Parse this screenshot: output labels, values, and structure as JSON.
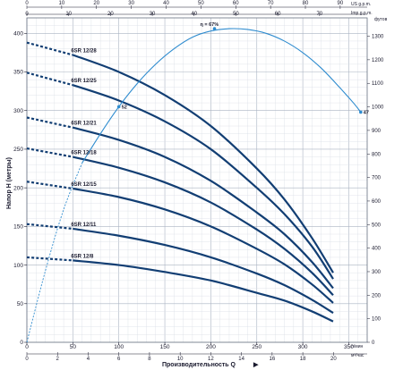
{
  "chart_data": {
    "type": "line",
    "xlabel": "Производительность Q",
    "x_unit": "л/мин",
    "x_unit_m3h": "м³/час",
    "ylabel": "Напор H (метры)",
    "y2_unit": "футов",
    "top_unit_us": "US g.p.m.",
    "top_unit_imp": "Imp g.p.m.",
    "xlim": [
      0,
      370
    ],
    "ylim": [
      0,
      420
    ],
    "x_ticks": [
      0,
      50,
      100,
      150,
      200,
      250,
      300,
      350
    ],
    "y_ticks": [
      0,
      50,
      100,
      150,
      200,
      250,
      300,
      350,
      400
    ],
    "m3h_ticks": [
      0,
      2,
      4,
      6,
      8,
      10,
      12,
      14,
      16,
      18,
      20
    ],
    "us_gpm_ticks": [
      0,
      10,
      20,
      30,
      40,
      50,
      60,
      70,
      80,
      90
    ],
    "imp_gpm_ticks": [
      0,
      10,
      20,
      30,
      40,
      50,
      60,
      70
    ],
    "feet_ticks": [
      0,
      100,
      200,
      300,
      400,
      500,
      600,
      700,
      800,
      900,
      1000,
      1100,
      1200,
      1300,
      1400
    ],
    "curve_x": [
      0,
      50,
      100,
      150,
      200,
      250,
      280,
      310,
      333
    ],
    "series": [
      {
        "name": "6SR 12/28",
        "dashed_until": 50,
        "values": [
          388,
          372,
          350,
          320,
          280,
          225,
          185,
          135,
          90
        ]
      },
      {
        "name": "6SR 12/25",
        "dashed_until": 50,
        "values": [
          349,
          333,
          313,
          286,
          250,
          200,
          166,
          124,
          82
        ]
      },
      {
        "name": "6SR 12/21",
        "dashed_until": 50,
        "values": [
          291,
          278,
          262,
          240,
          209,
          168,
          140,
          104,
          70
        ]
      },
      {
        "name": "6SR 12/18",
        "dashed_until": 50,
        "values": [
          251,
          240,
          226,
          207,
          181,
          146,
          121,
          90,
          61
        ]
      },
      {
        "name": "6SR 12/15",
        "dashed_until": 50,
        "values": [
          208,
          199,
          188,
          172,
          150,
          121,
          101,
          75,
          51
        ]
      },
      {
        "name": "6SR 12/11",
        "dashed_until": 50,
        "values": [
          153,
          147,
          138,
          126,
          110,
          89,
          74,
          55,
          38
        ]
      },
      {
        "name": "6SR 12/8",
        "dashed_until": 50,
        "values": [
          110,
          106,
          100,
          91,
          80,
          64,
          54,
          40,
          27
        ]
      }
    ],
    "efficiency_curve": {
      "dashed_x": [
        0,
        20,
        40,
        60
      ],
      "dashed_y": [
        0,
        92,
        172,
        232
      ],
      "x": [
        60,
        80,
        100,
        120,
        140,
        160,
        180,
        200,
        220,
        240,
        260,
        280,
        300,
        320,
        340,
        355,
        363
      ],
      "y": [
        232,
        270,
        305,
        335,
        360,
        380,
        395,
        403,
        406,
        405,
        400,
        390,
        375,
        355,
        330,
        310,
        298
      ],
      "labels": [
        {
          "text": "η = 67%",
          "x": 204,
          "y": 406
        },
        {
          "text": "52",
          "x": 100,
          "y": 305
        },
        {
          "text": "47",
          "x": 363,
          "y": 298
        }
      ]
    }
  }
}
